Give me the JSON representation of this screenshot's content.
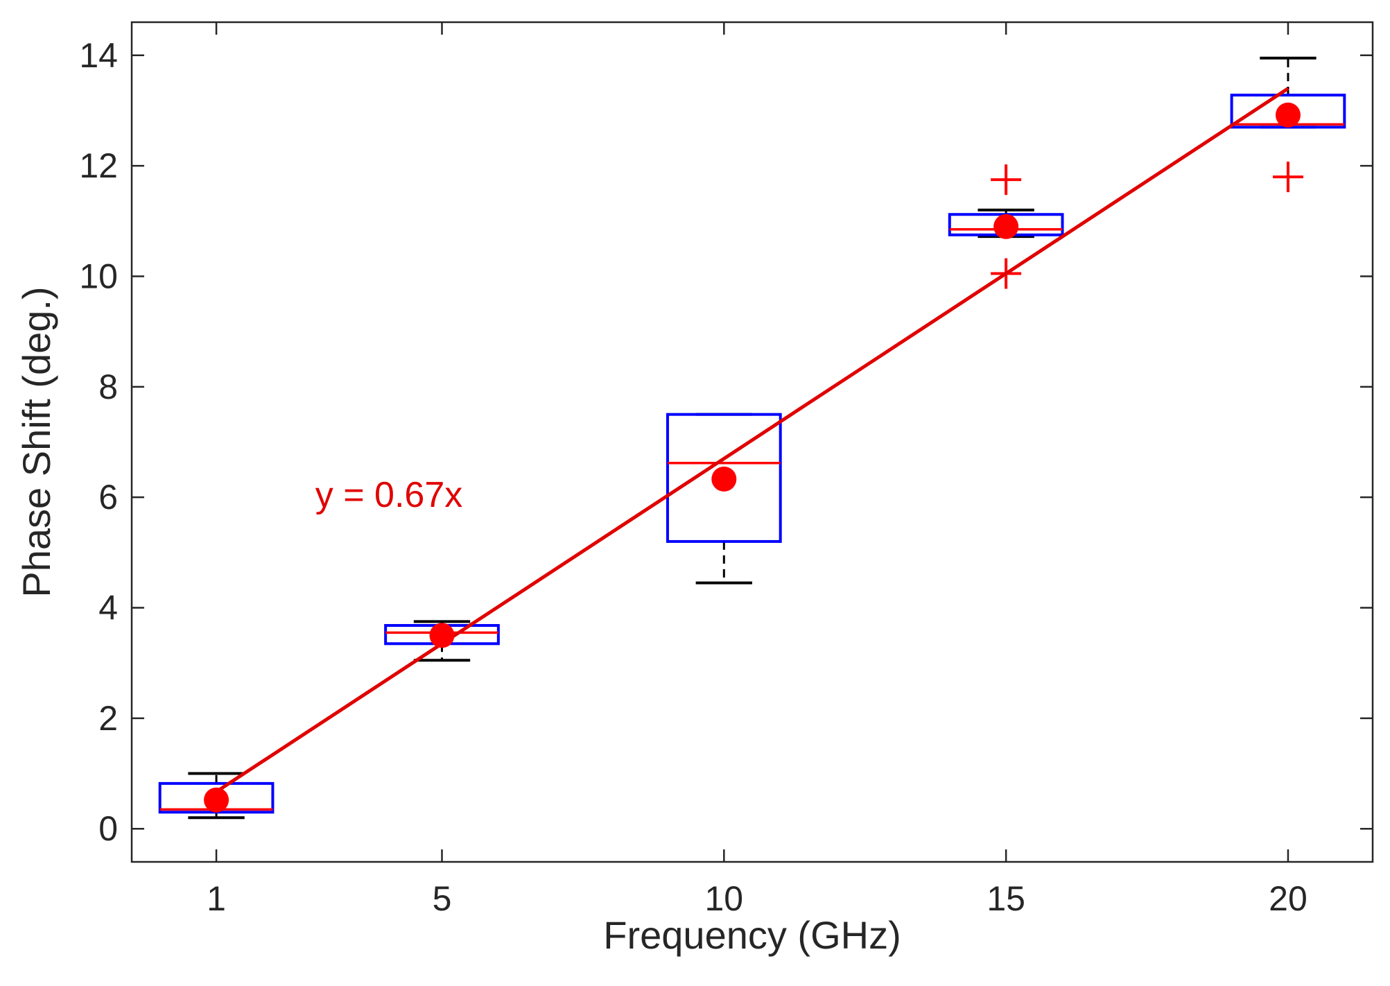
{
  "chart_data": {
    "type": "box",
    "title": "",
    "xlabel": "Frequency (GHz)",
    "ylabel": "Phase Shift (deg.)",
    "xlim": [
      -0.5,
      21.5
    ],
    "ylim": [
      -0.6,
      14.6
    ],
    "x_ticks": [
      1,
      5,
      10,
      15,
      20
    ],
    "y_ticks": [
      0,
      2,
      4,
      6,
      8,
      10,
      12,
      14
    ],
    "grid": false,
    "box_width": 2,
    "boxes": [
      {
        "x": 1,
        "whisker_low": 0.2,
        "q1": 0.3,
        "median": 0.35,
        "q3": 0.82,
        "whisker_high": 1.0,
        "mean": 0.52,
        "outliers": []
      },
      {
        "x": 5,
        "whisker_low": 3.05,
        "q1": 3.35,
        "median": 3.55,
        "q3": 3.68,
        "whisker_high": 3.75,
        "mean": 3.5,
        "outliers": []
      },
      {
        "x": 10,
        "whisker_low": 4.45,
        "q1": 5.2,
        "median": 6.62,
        "q3": 7.5,
        "whisker_high": 7.5,
        "mean": 6.33,
        "outliers": []
      },
      {
        "x": 15,
        "whisker_low": 10.72,
        "q1": 10.75,
        "median": 10.85,
        "q3": 11.12,
        "whisker_high": 11.2,
        "mean": 10.9,
        "outliers": [
          11.75,
          10.05
        ]
      },
      {
        "x": 20,
        "whisker_low": 12.7,
        "q1": 12.7,
        "median": 12.75,
        "q3": 13.28,
        "whisker_high": 13.95,
        "mean": 12.92,
        "outliers": [
          11.8
        ]
      }
    ],
    "fit_line": {
      "label": "y = 0.67x",
      "slope": 0.67,
      "x_range": [
        1,
        20
      ]
    },
    "annotation": {
      "text": "y = 0.67x",
      "x": 3,
      "y": 6.05
    },
    "colors": {
      "box": "#0000ff",
      "median": "#ff0000",
      "whisker": "#000000",
      "mean": "#ff0000",
      "outlier": "#ff0000",
      "fit": "#e00000",
      "axis": "#262626"
    }
  }
}
